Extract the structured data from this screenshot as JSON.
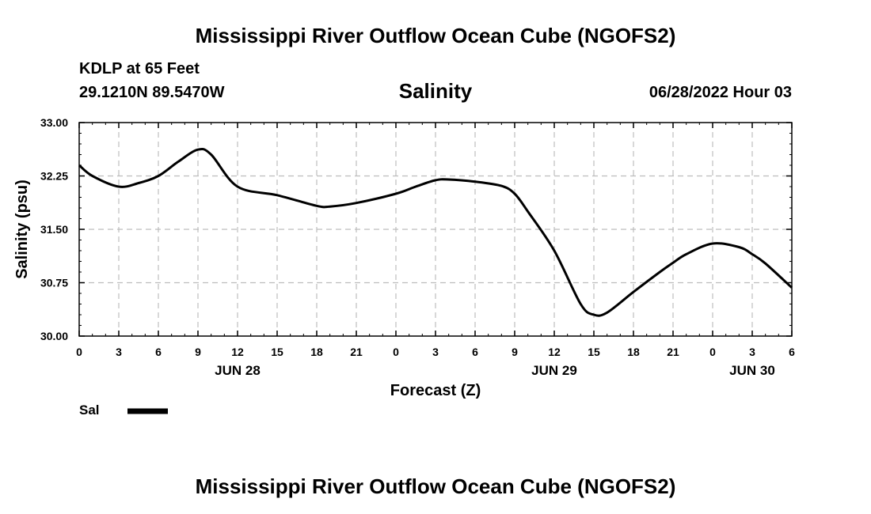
{
  "header": {
    "title": "Mississippi River Outflow Ocean Cube (NGOFS2)",
    "station": "KDLP at 65 Feet",
    "coords": "29.1210N  89.5470W",
    "variable": "Salinity",
    "datetime": "06/28/2022 Hour 03"
  },
  "footer": {
    "title": "Mississippi River Outflow Ocean Cube (NGOFS2)"
  },
  "legend": {
    "label": "Sal"
  },
  "chart_data": {
    "type": "line",
    "title": "Salinity",
    "xlabel": "Forecast (Z)",
    "ylabel": "Salinity (psu)",
    "xlim": [
      0,
      54
    ],
    "ylim": [
      30.0,
      33.0
    ],
    "grid": true,
    "x_unit": "forecast hour",
    "x_ticks": [
      0,
      3,
      6,
      9,
      12,
      15,
      18,
      21,
      24,
      27,
      30,
      33,
      36,
      39,
      42,
      45,
      48,
      51,
      54
    ],
    "x_tick_labels": [
      "0",
      "3",
      "6",
      "9",
      "12",
      "15",
      "18",
      "21",
      "0",
      "3",
      "6",
      "9",
      "12",
      "15",
      "18",
      "21",
      "0",
      "3",
      "6"
    ],
    "y_ticks": [
      30.0,
      30.75,
      31.5,
      32.25,
      33.0
    ],
    "y_tick_labels": [
      "30.00",
      "30.75",
      "31.50",
      "32.25",
      "33.00"
    ],
    "day_labels": [
      {
        "x": 12,
        "label": "JUN 28"
      },
      {
        "x": 36,
        "label": "JUN 29"
      },
      {
        "x": 51,
        "label": "JUN 30"
      }
    ],
    "series": [
      {
        "name": "Sal",
        "color": "#000000",
        "x": [
          0,
          1,
          3,
          4.5,
          6,
          7.5,
          9,
          10,
          12,
          15,
          18,
          19,
          21,
          24,
          25.5,
          27,
          28,
          30,
          32,
          33,
          34,
          36,
          38,
          39,
          40,
          42,
          44,
          45,
          46,
          48,
          50,
          51,
          52,
          54
        ],
        "y": [
          32.4,
          32.25,
          32.1,
          32.15,
          32.25,
          32.45,
          32.62,
          32.55,
          32.1,
          31.98,
          31.83,
          31.82,
          31.87,
          32.0,
          32.1,
          32.19,
          32.2,
          32.17,
          32.11,
          32.0,
          31.75,
          31.2,
          30.45,
          30.3,
          30.33,
          30.62,
          30.9,
          31.03,
          31.15,
          31.3,
          31.25,
          31.15,
          31.02,
          30.68
        ]
      }
    ]
  }
}
